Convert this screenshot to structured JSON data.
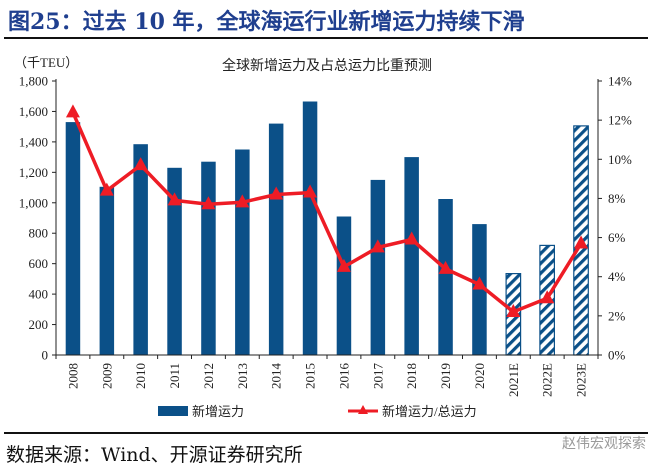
{
  "figure": {
    "title": "图25：过去 10 年，全球海运行业新增运力持续下滑",
    "source": "数据来源：Wind、开源证券研究所",
    "watermark": "赵伟宏观探索"
  },
  "colors": {
    "bar": "#0b5088",
    "line": "#ee1c25",
    "title": "#1f3f8f"
  },
  "chart_data": {
    "type": "bar",
    "title": "全球新增运力及占总运力比重预测",
    "ylabel": "（千TEU）",
    "xlabel": "",
    "categories": [
      "2008",
      "2009",
      "2010",
      "2011",
      "2012",
      "2013",
      "2014",
      "2015",
      "2016",
      "2017",
      "2018",
      "2019",
      "2020",
      "2021E",
      "2022E",
      "2023E"
    ],
    "forecast_from_index": 13,
    "ylim": [
      0,
      1800
    ],
    "yticks": [
      0,
      200,
      400,
      600,
      800,
      1000,
      1200,
      1400,
      1600,
      1800
    ],
    "ytick_labels": [
      "0",
      "200",
      "400",
      "600",
      "800",
      "1,000",
      "1,200",
      "1,400",
      "1,600",
      "1,800"
    ],
    "y2lim": [
      0,
      14
    ],
    "y2ticks": [
      0,
      2,
      4,
      6,
      8,
      10,
      12,
      14
    ],
    "y2tick_labels": [
      "0%",
      "2%",
      "4%",
      "6%",
      "8%",
      "10%",
      "12%",
      "14%"
    ],
    "grid": false,
    "legend_position": "bottom",
    "series": [
      {
        "name": "新增运力",
        "type": "bar",
        "axis": "left",
        "values": [
          1530,
          1105,
          1385,
          1230,
          1270,
          1350,
          1520,
          1665,
          910,
          1150,
          1300,
          1025,
          860,
          535,
          720,
          1505
        ]
      },
      {
        "name": "新增运力/总运力",
        "type": "line",
        "axis": "right",
        "marker": "triangle",
        "values": [
          12.4,
          8.4,
          9.7,
          7.9,
          7.7,
          7.8,
          8.2,
          8.3,
          4.5,
          5.5,
          5.9,
          4.4,
          3.6,
          2.2,
          2.9,
          5.7
        ]
      }
    ]
  }
}
